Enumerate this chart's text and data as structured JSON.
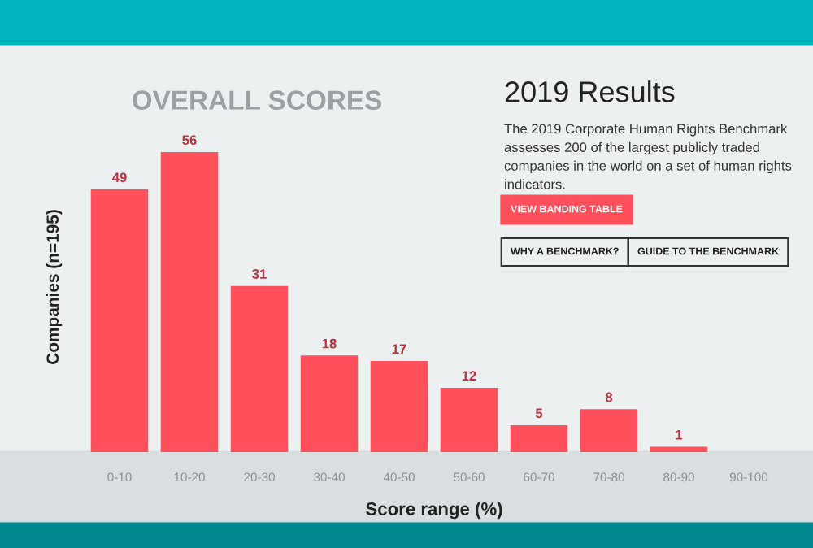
{
  "chart_data": {
    "type": "bar",
    "title": "OVERALL SCORES",
    "xlabel": "Score range (%)",
    "ylabel": "Companies (n=195)",
    "categories": [
      "0-10",
      "10-20",
      "20-30",
      "30-40",
      "40-50",
      "50-60",
      "60-70",
      "70-80",
      "80-90",
      "90-100"
    ],
    "values": [
      49,
      56,
      31,
      18,
      17,
      12,
      5,
      8,
      1,
      null
    ],
    "color": "#ff505b",
    "data_labels": true,
    "grid": false,
    "legend": false,
    "annotations": [
      "2019 Results",
      "The 2019 Corporate Human Rights Benchmark assesses 200 of the largest publicly traded companies in the world on a set of human rights indicators.",
      "VIEW BANDING TABLE",
      "WHY A BENCHMARK?",
      "GUIDE TO THE BENCHMARK"
    ]
  }
}
